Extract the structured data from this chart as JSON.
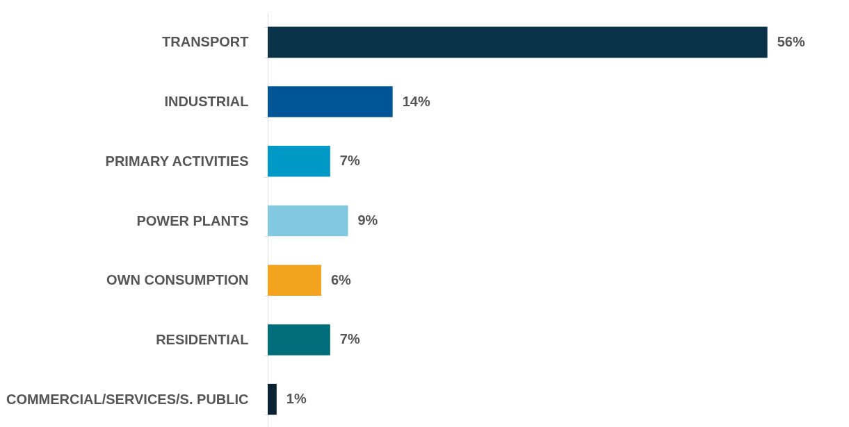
{
  "chart_data": {
    "type": "bar",
    "orientation": "horizontal",
    "categories": [
      "TRANSPORT",
      "INDUSTRIAL",
      "PRIMARY ACTIVITIES",
      "POWER PLANTS",
      "OWN CONSUMPTION",
      "RESIDENTIAL",
      "COMMERCIAL/SERVICES/S. PUBLIC"
    ],
    "values": [
      56,
      14,
      7,
      9,
      6,
      7,
      1
    ],
    "colors": [
      "#0a3249",
      "#005596",
      "#0099c6",
      "#82c8e0",
      "#f4a31f",
      "#006e7a",
      "#0a2233"
    ],
    "value_labels": [
      "56%",
      "14%",
      "7%",
      "9%",
      "6%",
      "7%",
      "1%"
    ],
    "grid": false,
    "legend": false
  }
}
